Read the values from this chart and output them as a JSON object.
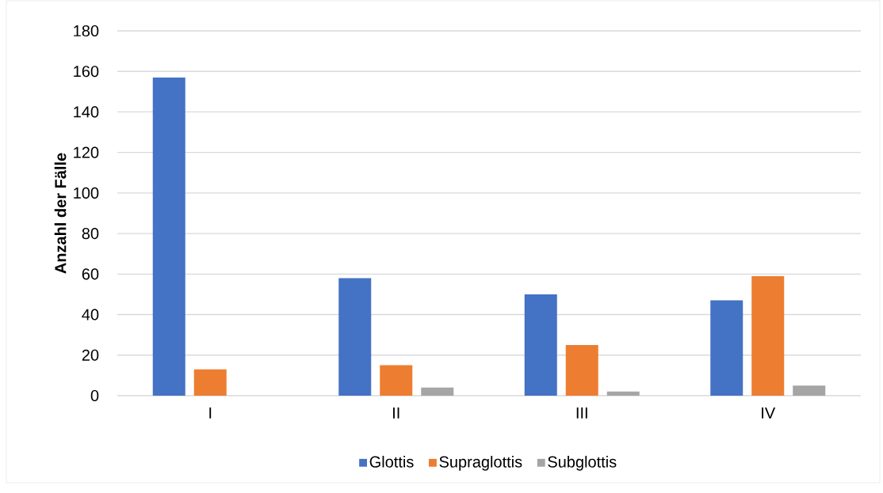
{
  "chart_data": {
    "type": "bar",
    "ylabel": "Anzahl der Fälle",
    "categories": [
      "I",
      "II",
      "III",
      "IV"
    ],
    "series": [
      {
        "name": "Glottis",
        "color": "#4472c4",
        "values": [
          157,
          58,
          50,
          47
        ]
      },
      {
        "name": "Supraglottis",
        "color": "#ed7d31",
        "values": [
          13,
          15,
          25,
          59
        ]
      },
      {
        "name": "Subglottis",
        "color": "#a5a5a5",
        "values": [
          0,
          4,
          2,
          5
        ]
      }
    ],
    "ylim": [
      0,
      180
    ],
    "yticks": [
      0,
      20,
      40,
      60,
      80,
      100,
      120,
      140,
      160,
      180
    ],
    "grid": "y",
    "legend": "bottom"
  }
}
